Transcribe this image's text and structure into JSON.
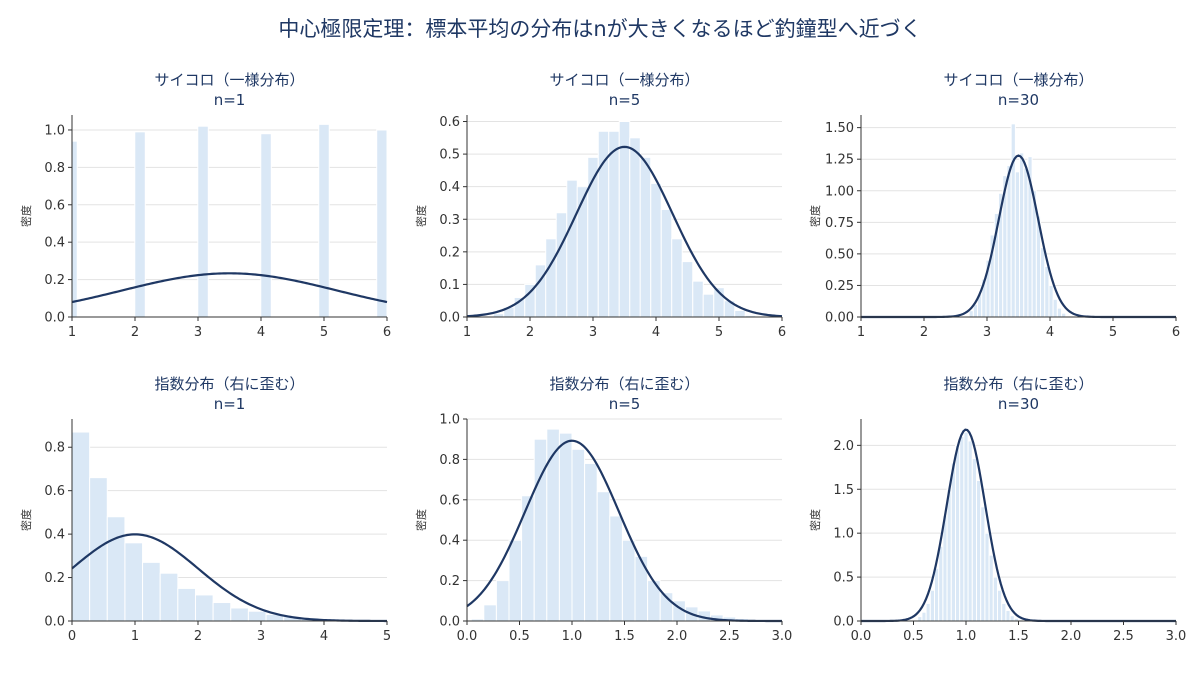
{
  "title": "中心極限定理：標本平均の分布はnが大きくなるほど釣鐘型へ近づく",
  "colors": {
    "bar": "#dae8f6",
    "curve": "#1f3864",
    "text": "#1f3864",
    "grid": "#e3e3e3"
  },
  "chart_data": [
    {
      "type": "bar",
      "title_line1": "サイコロ（一様分布）",
      "title_line2": "n=1",
      "ylabel": "密度",
      "xlim": [
        1,
        6
      ],
      "ylim": [
        0,
        1.08
      ],
      "xticks": [
        1,
        2,
        3,
        4,
        5,
        6
      ],
      "xtick_labels": [
        "1",
        "2",
        "3",
        "4",
        "5",
        "6"
      ],
      "yticks": [
        0,
        0.2,
        0.4,
        0.6,
        0.8,
        1.0
      ],
      "ytick_labels": [
        "0.0",
        "0.2",
        "0.4",
        "0.6",
        "0.8",
        "1.0"
      ],
      "bin_width": 0.167,
      "bins": [
        {
          "x": 1.0,
          "y": 0.94
        },
        {
          "x": 2.08,
          "y": 0.99
        },
        {
          "x": 3.08,
          "y": 1.02
        },
        {
          "x": 4.08,
          "y": 0.98
        },
        {
          "x": 5.0,
          "y": 1.03
        },
        {
          "x": 5.92,
          "y": 1.0
        }
      ],
      "curve": {
        "mu": 3.5,
        "sigma": 1.708
      }
    },
    {
      "type": "bar",
      "title_line1": "サイコロ（一様分布）",
      "title_line2": "n=5",
      "ylabel": "密度",
      "xlim": [
        1,
        6
      ],
      "ylim": [
        0,
        0.62
      ],
      "xticks": [
        1,
        2,
        3,
        4,
        5,
        6
      ],
      "xtick_labels": [
        "1",
        "2",
        "3",
        "4",
        "5",
        "6"
      ],
      "yticks": [
        0,
        0.1,
        0.2,
        0.3,
        0.4,
        0.5,
        0.6
      ],
      "ytick_labels": [
        "0.0",
        "0.1",
        "0.2",
        "0.3",
        "0.4",
        "0.5",
        "0.6"
      ],
      "bin_width": 0.167,
      "bins": [
        {
          "x": 1.5,
          "y": 0.01
        },
        {
          "x": 1.667,
          "y": 0.03
        },
        {
          "x": 1.833,
          "y": 0.06
        },
        {
          "x": 2.0,
          "y": 0.1
        },
        {
          "x": 2.167,
          "y": 0.16
        },
        {
          "x": 2.333,
          "y": 0.24
        },
        {
          "x": 2.5,
          "y": 0.32
        },
        {
          "x": 2.667,
          "y": 0.42
        },
        {
          "x": 2.833,
          "y": 0.4
        },
        {
          "x": 3.0,
          "y": 0.49
        },
        {
          "x": 3.167,
          "y": 0.57
        },
        {
          "x": 3.333,
          "y": 0.57
        },
        {
          "x": 3.5,
          "y": 0.6
        },
        {
          "x": 3.667,
          "y": 0.55
        },
        {
          "x": 3.833,
          "y": 0.49
        },
        {
          "x": 4.0,
          "y": 0.41
        },
        {
          "x": 4.167,
          "y": 0.33
        },
        {
          "x": 4.333,
          "y": 0.24
        },
        {
          "x": 4.5,
          "y": 0.17
        },
        {
          "x": 4.667,
          "y": 0.11
        },
        {
          "x": 4.833,
          "y": 0.07
        },
        {
          "x": 5.0,
          "y": 0.09
        },
        {
          "x": 5.167,
          "y": 0.05
        },
        {
          "x": 5.333,
          "y": 0.02
        },
        {
          "x": 5.5,
          "y": 0.005
        }
      ],
      "curve": {
        "mu": 3.5,
        "sigma": 0.764
      }
    },
    {
      "type": "bar",
      "title_line1": "サイコロ（一様分布）",
      "title_line2": "n=30",
      "ylabel": "密度",
      "xlim": [
        1,
        6
      ],
      "ylim": [
        0,
        1.6
      ],
      "xticks": [
        1,
        2,
        3,
        4,
        5,
        6
      ],
      "xtick_labels": [
        "1",
        "2",
        "3",
        "4",
        "5",
        "6"
      ],
      "yticks": [
        0,
        0.25,
        0.5,
        0.75,
        1.0,
        1.25,
        1.5
      ],
      "ytick_labels": [
        "0.00",
        "0.25",
        "0.50",
        "0.75",
        "1.00",
        "1.25",
        "1.50"
      ],
      "bin_width": 0.067,
      "bins": [
        {
          "x": 2.75,
          "y": 0.05
        },
        {
          "x": 2.817,
          "y": 0.1
        },
        {
          "x": 2.883,
          "y": 0.18
        },
        {
          "x": 2.95,
          "y": 0.3
        },
        {
          "x": 3.017,
          "y": 0.45
        },
        {
          "x": 3.083,
          "y": 0.65
        },
        {
          "x": 3.15,
          "y": 0.82
        },
        {
          "x": 3.217,
          "y": 0.98
        },
        {
          "x": 3.283,
          "y": 1.12
        },
        {
          "x": 3.35,
          "y": 1.2
        },
        {
          "x": 3.417,
          "y": 1.53
        },
        {
          "x": 3.483,
          "y": 1.15
        },
        {
          "x": 3.55,
          "y": 1.3
        },
        {
          "x": 3.617,
          "y": 1.18
        },
        {
          "x": 3.683,
          "y": 1.27
        },
        {
          "x": 3.75,
          "y": 1.0
        },
        {
          "x": 3.817,
          "y": 0.8
        },
        {
          "x": 3.883,
          "y": 0.55
        },
        {
          "x": 3.95,
          "y": 0.4
        },
        {
          "x": 4.017,
          "y": 0.25
        },
        {
          "x": 4.083,
          "y": 0.14
        },
        {
          "x": 4.15,
          "y": 0.07
        },
        {
          "x": 4.217,
          "y": 0.03
        }
      ],
      "curve": {
        "mu": 3.5,
        "sigma": 0.312
      }
    },
    {
      "type": "bar",
      "title_line1": "指数分布（右に歪む）",
      "title_line2": "n=1",
      "ylabel": "密度",
      "xlim": [
        0,
        5
      ],
      "ylim": [
        0,
        0.93
      ],
      "xticks": [
        0,
        1,
        2,
        3,
        4,
        5
      ],
      "xtick_labels": [
        "0",
        "1",
        "2",
        "3",
        "4",
        "5"
      ],
      "yticks": [
        0,
        0.2,
        0.4,
        0.6,
        0.8
      ],
      "ytick_labels": [
        "0.0",
        "0.2",
        "0.4",
        "0.6",
        "0.8"
      ],
      "bin_width": 0.28,
      "bins": [
        {
          "x": 0.14,
          "y": 0.87
        },
        {
          "x": 0.42,
          "y": 0.66
        },
        {
          "x": 0.7,
          "y": 0.48
        },
        {
          "x": 0.98,
          "y": 0.36
        },
        {
          "x": 1.26,
          "y": 0.27
        },
        {
          "x": 1.54,
          "y": 0.22
        },
        {
          "x": 1.82,
          "y": 0.15
        },
        {
          "x": 2.1,
          "y": 0.12
        },
        {
          "x": 2.38,
          "y": 0.085
        },
        {
          "x": 2.66,
          "y": 0.06
        },
        {
          "x": 2.94,
          "y": 0.045
        },
        {
          "x": 3.22,
          "y": 0.03
        },
        {
          "x": 3.5,
          "y": 0.02
        },
        {
          "x": 3.78,
          "y": 0.015
        },
        {
          "x": 4.06,
          "y": 0.01
        },
        {
          "x": 4.34,
          "y": 0.007
        },
        {
          "x": 4.62,
          "y": 0.005
        },
        {
          "x": 4.9,
          "y": 0.003
        }
      ],
      "curve": {
        "mu": 1.0,
        "sigma": 1.0
      }
    },
    {
      "type": "bar",
      "title_line1": "指数分布（右に歪む）",
      "title_line2": "n=5",
      "ylabel": "密度",
      "xlim": [
        0,
        3
      ],
      "ylim": [
        0,
        1.0
      ],
      "xticks": [
        0,
        0.5,
        1.0,
        1.5,
        2.0,
        2.5,
        3.0
      ],
      "xtick_labels": [
        "0.0",
        "0.5",
        "1.0",
        "1.5",
        "2.0",
        "2.5",
        "3.0"
      ],
      "yticks": [
        0,
        0.2,
        0.4,
        0.6,
        0.8,
        1.0
      ],
      "ytick_labels": [
        "0.0",
        "0.2",
        "0.4",
        "0.6",
        "0.8",
        "1.0"
      ],
      "bin_width": 0.12,
      "bins": [
        {
          "x": 0.1,
          "y": 0.01
        },
        {
          "x": 0.22,
          "y": 0.08
        },
        {
          "x": 0.34,
          "y": 0.2
        },
        {
          "x": 0.46,
          "y": 0.4
        },
        {
          "x": 0.58,
          "y": 0.62
        },
        {
          "x": 0.7,
          "y": 0.9
        },
        {
          "x": 0.82,
          "y": 0.95
        },
        {
          "x": 0.94,
          "y": 0.93
        },
        {
          "x": 1.06,
          "y": 0.85
        },
        {
          "x": 1.18,
          "y": 0.78
        },
        {
          "x": 1.3,
          "y": 0.64
        },
        {
          "x": 1.42,
          "y": 0.52
        },
        {
          "x": 1.54,
          "y": 0.4
        },
        {
          "x": 1.66,
          "y": 0.32
        },
        {
          "x": 1.78,
          "y": 0.2
        },
        {
          "x": 1.9,
          "y": 0.14
        },
        {
          "x": 2.02,
          "y": 0.1
        },
        {
          "x": 2.14,
          "y": 0.07
        },
        {
          "x": 2.26,
          "y": 0.05
        },
        {
          "x": 2.38,
          "y": 0.03
        },
        {
          "x": 2.5,
          "y": 0.02
        },
        {
          "x": 2.62,
          "y": 0.012
        },
        {
          "x": 2.74,
          "y": 0.006
        },
        {
          "x": 2.86,
          "y": 0.003
        }
      ],
      "curve": {
        "mu": 1.0,
        "sigma": 0.447
      }
    },
    {
      "type": "bar",
      "title_line1": "指数分布（右に歪む）",
      "title_line2": "n=30",
      "ylabel": "密度",
      "xlim": [
        0,
        3
      ],
      "ylim": [
        0,
        2.3
      ],
      "xticks": [
        0,
        0.5,
        1.0,
        1.5,
        2.0,
        2.5,
        3.0
      ],
      "xtick_labels": [
        "0.0",
        "0.5",
        "1.0",
        "1.5",
        "2.0",
        "2.5",
        "3.0"
      ],
      "yticks": [
        0,
        0.5,
        1.0,
        1.5,
        2.0
      ],
      "ytick_labels": [
        "0.0",
        "0.5",
        "1.0",
        "1.5",
        "2.0"
      ],
      "bin_width": 0.04,
      "bins": [
        {
          "x": 0.56,
          "y": 0.05
        },
        {
          "x": 0.6,
          "y": 0.1
        },
        {
          "x": 0.64,
          "y": 0.2
        },
        {
          "x": 0.68,
          "y": 0.35
        },
        {
          "x": 0.72,
          "y": 0.6
        },
        {
          "x": 0.76,
          "y": 0.85
        },
        {
          "x": 0.8,
          "y": 1.2
        },
        {
          "x": 0.84,
          "y": 1.5
        },
        {
          "x": 0.88,
          "y": 1.8
        },
        {
          "x": 0.92,
          "y": 2.0
        },
        {
          "x": 0.96,
          "y": 2.1
        },
        {
          "x": 1.0,
          "y": 2.15
        },
        {
          "x": 1.04,
          "y": 2.05
        },
        {
          "x": 1.08,
          "y": 1.85
        },
        {
          "x": 1.12,
          "y": 1.6
        },
        {
          "x": 1.16,
          "y": 1.3
        },
        {
          "x": 1.2,
          "y": 1.0
        },
        {
          "x": 1.24,
          "y": 0.75
        },
        {
          "x": 1.28,
          "y": 0.5
        },
        {
          "x": 1.32,
          "y": 0.35
        },
        {
          "x": 1.36,
          "y": 0.2
        },
        {
          "x": 1.4,
          "y": 0.12
        },
        {
          "x": 1.44,
          "y": 0.06
        },
        {
          "x": 1.48,
          "y": 0.03
        }
      ],
      "curve": {
        "mu": 1.0,
        "sigma": 0.183
      }
    }
  ]
}
